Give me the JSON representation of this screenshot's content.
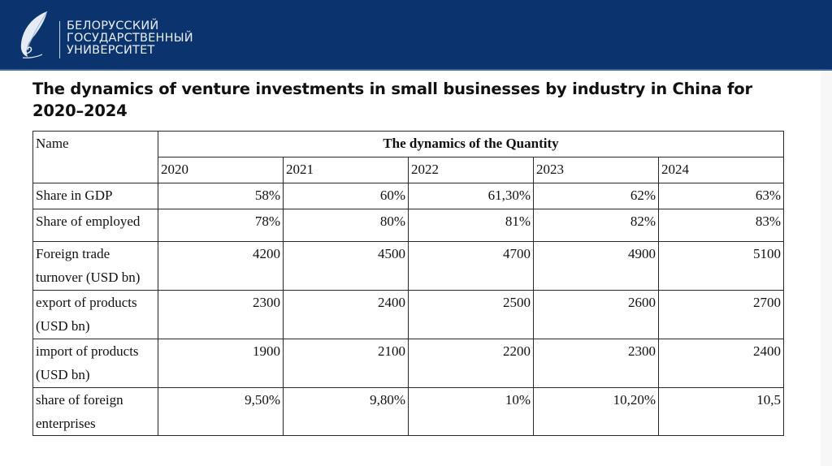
{
  "header": {
    "logo_lines": [
      "БЕЛОРУССКИЙ",
      "ГОСУДАРСТВЕННЫЙ",
      "УНИВЕРСИТЕТ"
    ],
    "logo_icon": "feather-icon",
    "brand_color": "#0b336e"
  },
  "title": "The dynamics of venture investments in small businesses by industry in China for 2020–2024",
  "table": {
    "name_header": "Name",
    "group_header": "The dynamics of the Quantity",
    "years": [
      "2020",
      "2021",
      "2022",
      "2023",
      "2024"
    ],
    "rows": [
      {
        "name": "Share in GDP",
        "values": [
          "58%",
          "60%",
          "61,30%",
          "62%",
          "63%"
        ]
      },
      {
        "name": "Share of employed",
        "values": [
          "78%",
          "80%",
          "81%",
          "82%",
          "83%"
        ]
      },
      {
        "name": "Foreign trade turnover (USD bn)",
        "values": [
          "4200",
          "4500",
          "4700",
          "4900",
          "5100"
        ]
      },
      {
        "name": "export of products (USD bn)",
        "values": [
          "2300",
          "2400",
          "2500",
          "2600",
          "2700"
        ]
      },
      {
        "name": "import of products (USD bn)",
        "values": [
          "1900",
          "2100",
          "2200",
          "2300",
          "2400"
        ]
      },
      {
        "name": "share of foreign enterprises",
        "values": [
          "9,50%",
          "9,80%",
          "10%",
          "10,20%",
          "10,5"
        ]
      }
    ]
  }
}
